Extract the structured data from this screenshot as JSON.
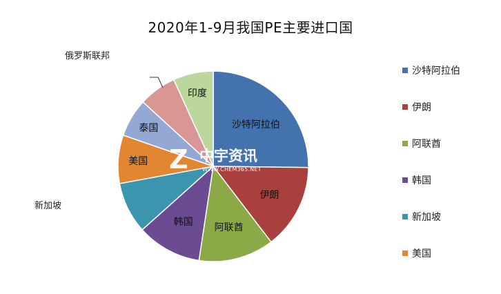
{
  "chart_data": {
    "type": "pie",
    "title": "2020年1-9月我国PE主要进口国",
    "categories": [
      "沙特阿拉伯",
      "伊朗",
      "阿联酋",
      "韩国",
      "新加坡",
      "美国",
      "泰国",
      "俄罗斯联邦",
      "印度"
    ],
    "values": [
      25.2,
      14.4,
      12.8,
      11.0,
      8.7,
      8.2,
      6.5,
      6.4,
      6.8
    ],
    "colors": [
      "#4372AF",
      "#A9403D",
      "#8BAA47",
      "#6B4C92",
      "#3C95AE",
      "#E28631",
      "#93A8D3",
      "#D89695",
      "#BCD79E"
    ],
    "slice_labels": [
      "沙特阿拉伯",
      "伊朗",
      "阿联酋",
      "韩国",
      "",
      "美国",
      "泰国",
      "",
      "印度"
    ],
    "outside_labels": {
      "russia": "俄罗斯联邦",
      "singapore": "新加坡"
    },
    "legend": {
      "placement": "right",
      "entries": [
        "沙特阿拉伯",
        "伊朗",
        "阿联酋",
        "韩国",
        "新加坡",
        "美国"
      ]
    },
    "watermark": {
      "mark": "Z",
      "text": "中宇资讯",
      "subtext": "WWW.CHEM365.NET"
    }
  }
}
